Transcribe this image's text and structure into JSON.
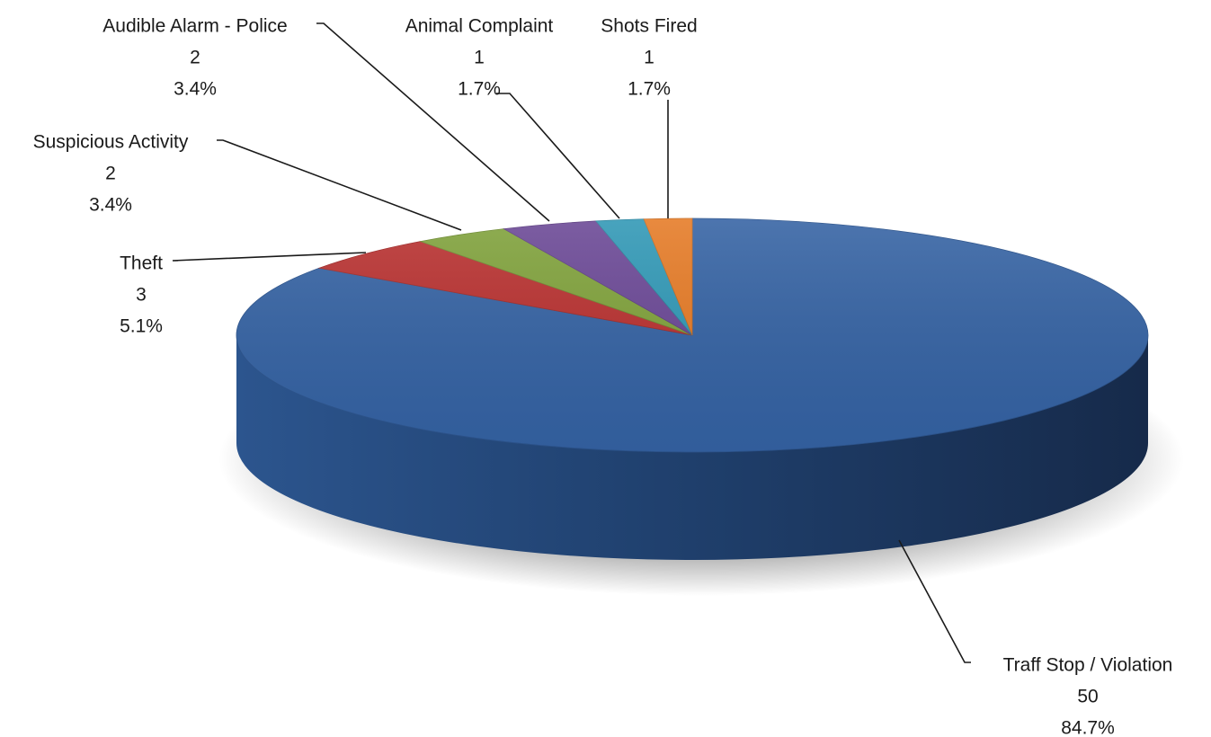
{
  "chart_data": {
    "type": "pie",
    "style": "3d",
    "slices": [
      {
        "name": "Traff Stop / Violation",
        "value": 50,
        "percent": "84.7%",
        "color": "#3462a3"
      },
      {
        "name": "Theft",
        "value": 3,
        "percent": "5.1%",
        "color": "#b8302f"
      },
      {
        "name": "Suspicious Activity",
        "value": 2,
        "percent": "3.4%",
        "color": "#7fa13a"
      },
      {
        "name": "Audible Alarm - Police",
        "value": 2,
        "percent": "3.4%",
        "color": "#6a4795"
      },
      {
        "name": "Animal Complaint",
        "value": 1,
        "percent": "1.7%",
        "color": "#2f97b5"
      },
      {
        "name": "Shots Fired",
        "value": 1,
        "percent": "1.7%",
        "color": "#e57a25"
      }
    ]
  }
}
